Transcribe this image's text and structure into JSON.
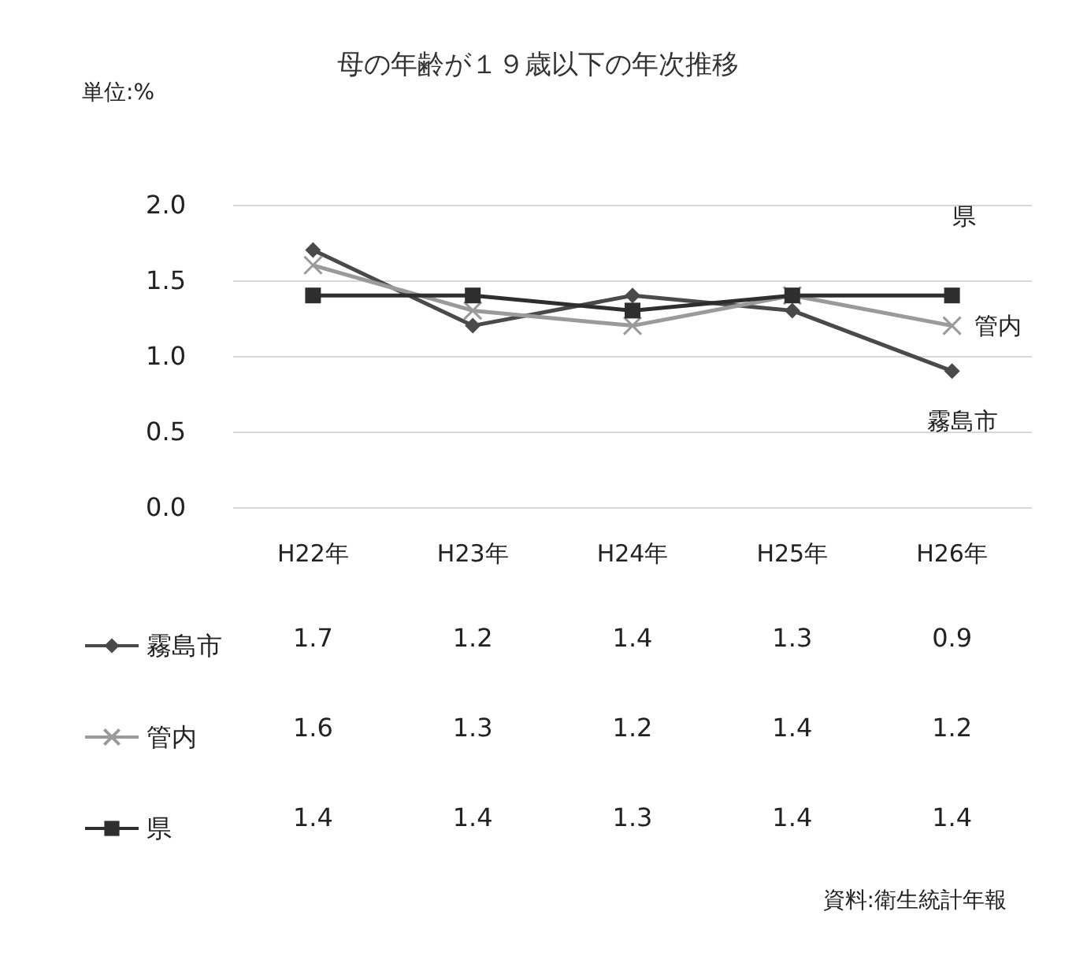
{
  "chart_data": {
    "type": "line",
    "title": "母の年齢が１９歳以下の年次推移",
    "ylabel": "単位:%",
    "categories": [
      "H22年",
      "H23年",
      "H24年",
      "H25年",
      "H26年"
    ],
    "series": [
      {
        "name": "霧島市",
        "color": "#4a4a4a",
        "marker": "diamond",
        "values": [
          1.7,
          1.2,
          1.4,
          1.3,
          0.9
        ]
      },
      {
        "name": "管内",
        "color": "#9a9a9a",
        "marker": "cross",
        "values": [
          1.6,
          1.3,
          1.2,
          1.4,
          1.2
        ]
      },
      {
        "name": "県",
        "color": "#2e2e2e",
        "marker": "square",
        "values": [
          1.4,
          1.4,
          1.3,
          1.4,
          1.4
        ]
      }
    ],
    "ylim": [
      0,
      2
    ],
    "yticks": [
      {
        "value": 0,
        "label": "0.0"
      },
      {
        "value": 0.5,
        "label": "0.5"
      },
      {
        "value": 1,
        "label": "1.0"
      },
      {
        "value": 1.5,
        "label": "1.5"
      },
      {
        "value": 2,
        "label": "2.0"
      }
    ],
    "grid": "y",
    "legend": "bottom left",
    "data_labels": true,
    "line_style": "solid",
    "annotations": [
      "資料:衛生統計年報"
    ]
  }
}
